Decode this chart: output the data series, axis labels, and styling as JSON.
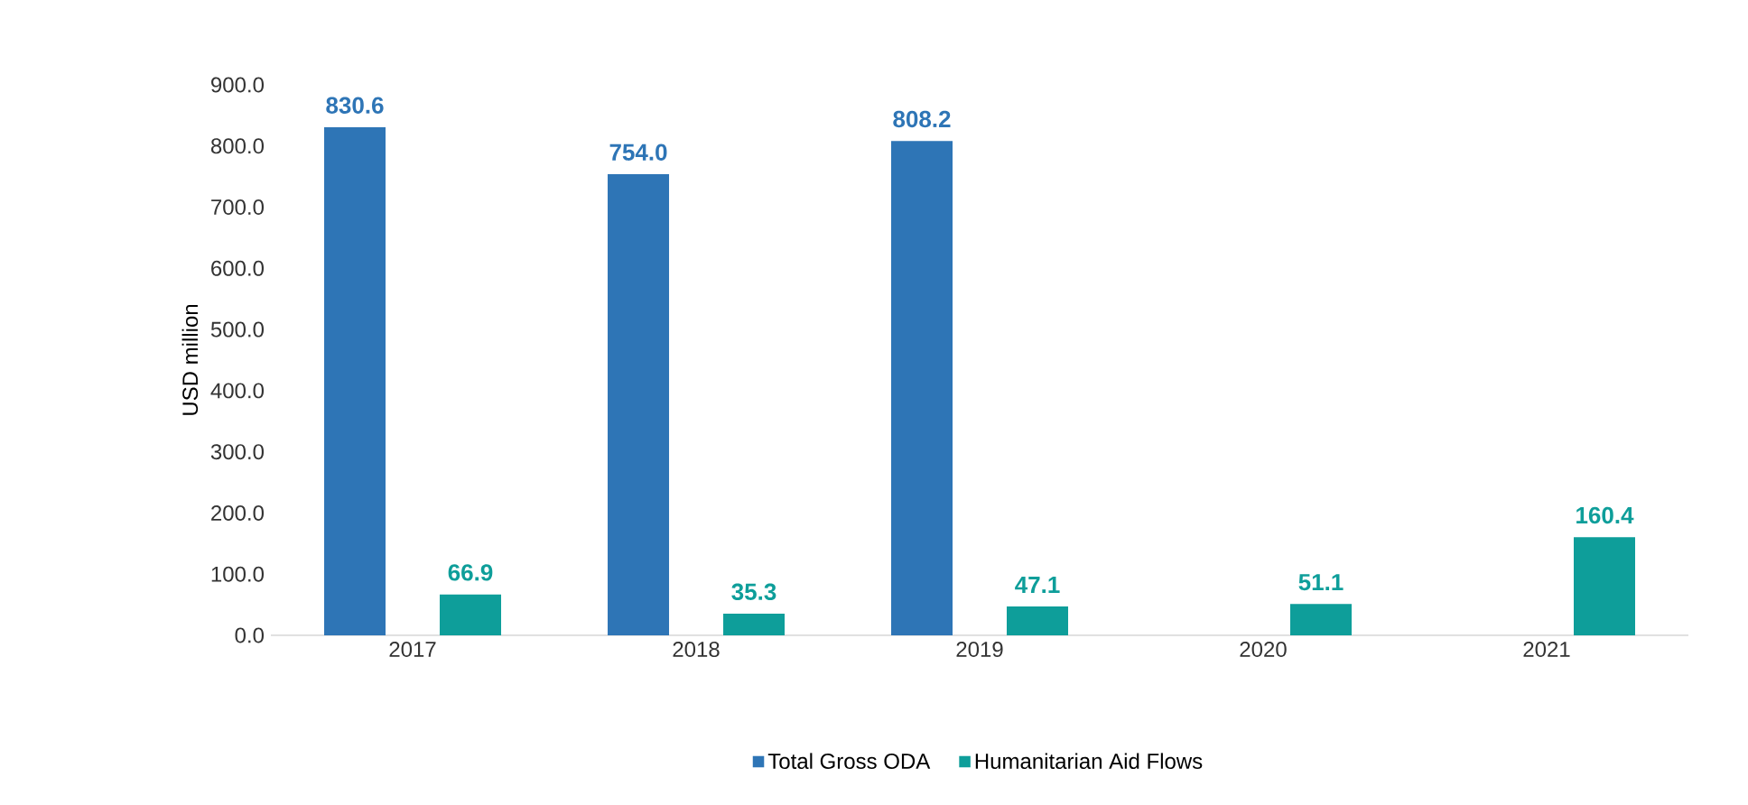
{
  "chart_data": {
    "type": "bar",
    "ylabel": "USD million",
    "categories": [
      "2017",
      "2018",
      "2019",
      "2020",
      "2021"
    ],
    "series": [
      {
        "name": "Total Gross ODA",
        "color": "#2e75b6",
        "values": [
          830.6,
          754.0,
          808.2,
          null,
          null
        ],
        "value_labels": [
          "830.6",
          "754.0",
          "808.2",
          null,
          null
        ]
      },
      {
        "name": "Humanitarian Aid Flows",
        "color": "#0e9e9a",
        "values": [
          66.9,
          35.3,
          47.1,
          51.1,
          160.4
        ],
        "value_labels": [
          "66.9",
          "35.3",
          "47.1",
          "51.1",
          "160.4"
        ]
      }
    ],
    "ylim": [
      0,
      900
    ],
    "yticks": [
      {
        "value": 0,
        "label": "0.0"
      },
      {
        "value": 100,
        "label": "100.0"
      },
      {
        "value": 200,
        "label": "200.0"
      },
      {
        "value": 300,
        "label": "300.0"
      },
      {
        "value": 400,
        "label": "400.0"
      },
      {
        "value": 500,
        "label": "500.0"
      },
      {
        "value": 600,
        "label": "600.0"
      },
      {
        "value": 700,
        "label": "700.0"
      },
      {
        "value": 800,
        "label": "800.0"
      },
      {
        "value": 900,
        "label": "900.0"
      }
    ],
    "grid": false,
    "legend": "bottom"
  }
}
